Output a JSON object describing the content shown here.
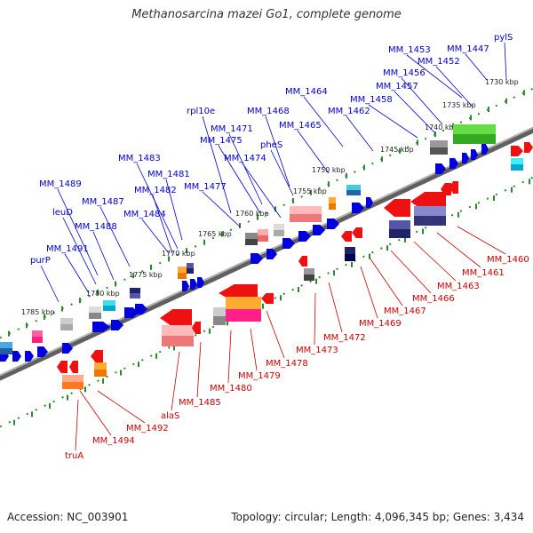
{
  "title": "Methanosarcina mazei Go1, complete genome",
  "footer": {
    "accession": "Accession: NC_003901",
    "stats": "Topology: circular; Length: 4,096,345 bp; Genes: 3,434"
  },
  "kbp_labels": [
    "1730 kbp",
    "1735 kbp",
    "1740 kbp",
    "1745 kbp",
    "1750 kbp",
    "1755 kbp",
    "1760 kbp",
    "1765 kbp",
    "1770 kbp",
    "1775 kbp",
    "1780 kbp",
    "1785 kbp"
  ],
  "top_genes": [
    "pylS",
    "MM_1447",
    "MM_1452",
    "MM_1453",
    "MM_1456",
    "MM_1457",
    "MM_1458",
    "MM_1462",
    "MM_1464",
    "MM_1465",
    "MM_1468",
    "MM_1471",
    "rpl10e",
    "MM_1475",
    "pheS",
    "MM_1474",
    "MM_1477",
    "MM_1481",
    "MM_1483",
    "MM_1482",
    "MM_1484",
    "MM_1487",
    "MM_1489",
    "leuD",
    "MM_1488",
    "MM_1491",
    "purP"
  ],
  "bottom_genes": [
    "MM_1460",
    "MM_1461",
    "MM_1463",
    "MM_1466",
    "MM_1467",
    "MM_1469",
    "MM_1472",
    "MM_1473",
    "MM_1478",
    "MM_1479",
    "MM_1480",
    "MM_1485",
    "alaS",
    "MM_1492",
    "MM_1494",
    "truA"
  ],
  "colors": {
    "top_label": "#0000cc",
    "bottom_label": "#cc0000",
    "strand_line": "#808080",
    "tick_dots": "#2a8a2a"
  }
}
